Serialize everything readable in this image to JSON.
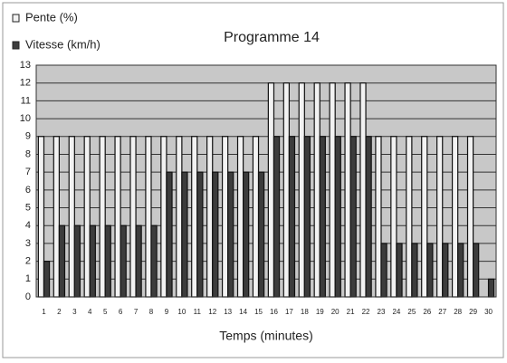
{
  "chart_data": {
    "type": "bar",
    "title": "Programme 14",
    "x_label": "Temps (minutes)",
    "categories": [
      "1",
      "2",
      "3",
      "4",
      "5",
      "6",
      "7",
      "8",
      "9",
      "10",
      "11",
      "12",
      "13",
      "14",
      "15",
      "16",
      "17",
      "18",
      "19",
      "20",
      "21",
      "22",
      "23",
      "24",
      "25",
      "26",
      "27",
      "28",
      "29",
      "30"
    ],
    "series": [
      {
        "name": "Pente (%)",
        "color": "#f2f2f2",
        "values": [
          9,
          9,
          9,
          9,
          9,
          9,
          9,
          9,
          9,
          9,
          9,
          9,
          9,
          9,
          9,
          12,
          12,
          12,
          12,
          12,
          12,
          12,
          9,
          9,
          9,
          9,
          9,
          9,
          9,
          0
        ]
      },
      {
        "name": "Vitesse (km/h)",
        "color": "#3c3c3c",
        "values": [
          2,
          4,
          4,
          4,
          4,
          4,
          4,
          4,
          7,
          7,
          7,
          7,
          7,
          7,
          7,
          9,
          9,
          9,
          9,
          9,
          9,
          9,
          3,
          3,
          3,
          3,
          3,
          3,
          3,
          1
        ]
      }
    ],
    "ylim": [
      0,
      13
    ],
    "yticks": [
      0,
      1,
      2,
      3,
      4,
      5,
      6,
      7,
      8,
      9,
      10,
      11,
      12,
      13
    ],
    "grid": true,
    "plot_background": "#c8c8c8"
  }
}
